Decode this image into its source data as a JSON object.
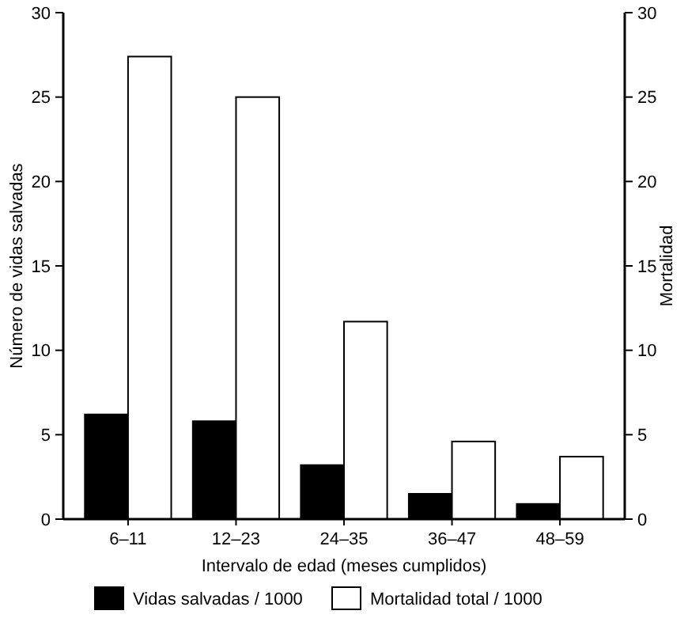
{
  "chart_data": {
    "type": "bar",
    "xlabel": "Intervalo de edad (meses cumplidos)",
    "ylabel": "Número de vidas salvadas",
    "y2label": "Mortalidad",
    "categories": [
      "6–11",
      "12–23",
      "24–35",
      "36–47",
      "48–59"
    ],
    "series": [
      {
        "name": "Vidas salvadas / 1000",
        "color": "#000000",
        "values": [
          6.2,
          5.8,
          3.2,
          1.5,
          0.9
        ]
      },
      {
        "name": "Mortalidad total / 1000",
        "color": "#ffffff",
        "values": [
          27.4,
          25.0,
          11.7,
          4.6,
          3.7
        ],
        "axis": "y2"
      }
    ],
    "ylim": [
      0,
      30
    ],
    "yticks": [
      0,
      5,
      10,
      15,
      20,
      25,
      30
    ],
    "y2lim": [
      0,
      30
    ],
    "y2ticks": [
      0,
      5,
      10,
      15,
      20,
      25,
      30
    ],
    "legend": "bottom",
    "grid": false
  }
}
